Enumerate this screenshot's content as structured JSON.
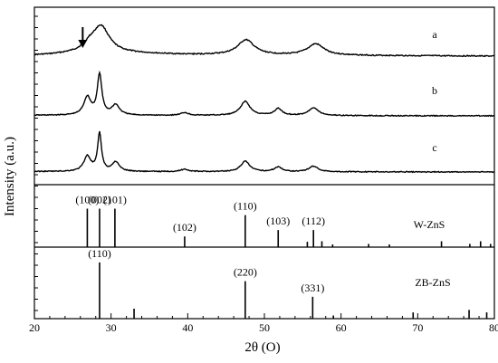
{
  "chart_data": {
    "type": "line",
    "xlabel": "2θ (O)",
    "ylabel": "Intensity (a.u.)",
    "xlim": [
      20,
      80
    ],
    "xticks": [
      20,
      30,
      40,
      50,
      60,
      70,
      80
    ],
    "grid": false,
    "legend": "none",
    "panels": [
      {
        "name": "patterns",
        "series": [
          {
            "label": "a",
            "color": "#000000",
            "peaks": [
              {
                "x": 27.2,
                "h": 0.12,
                "w": 1.0
              },
              {
                "x": 28.7,
                "h": 0.55,
                "w": 1.3
              },
              {
                "x": 47.6,
                "h": 0.32,
                "w": 1.3
              },
              {
                "x": 56.7,
                "h": 0.24,
                "w": 1.3
              }
            ],
            "baseline": [
              [
                20,
                0.02
              ],
              [
                22,
                0.03
              ],
              [
                25,
                0.06
              ],
              [
                27,
                0.08
              ],
              [
                33,
                0.06
              ],
              [
                40,
                0.03
              ],
              [
                50,
                0.02
              ],
              [
                80,
                0.0
              ]
            ],
            "arrow_x": 26.3
          },
          {
            "label": "b",
            "color": "#000000",
            "peaks": [
              {
                "x": 26.9,
                "h": 0.32,
                "w": 0.55
              },
              {
                "x": 28.5,
                "h": 0.72,
                "w": 0.35
              },
              {
                "x": 30.6,
                "h": 0.18,
                "w": 0.6
              },
              {
                "x": 39.6,
                "h": 0.05,
                "w": 0.6
              },
              {
                "x": 47.5,
                "h": 0.25,
                "w": 0.75
              },
              {
                "x": 51.8,
                "h": 0.12,
                "w": 0.6
              },
              {
                "x": 56.4,
                "h": 0.14,
                "w": 0.75
              }
            ],
            "baseline": [
              [
                20,
                0.01
              ],
              [
                80,
                0.0
              ]
            ]
          },
          {
            "label": "c",
            "color": "#000000",
            "peaks": [
              {
                "x": 26.9,
                "h": 0.32,
                "w": 0.55
              },
              {
                "x": 28.5,
                "h": 0.8,
                "w": 0.3
              },
              {
                "x": 30.6,
                "h": 0.2,
                "w": 0.55
              },
              {
                "x": 39.6,
                "h": 0.05,
                "w": 0.6
              },
              {
                "x": 47.5,
                "h": 0.22,
                "w": 0.7
              },
              {
                "x": 51.8,
                "h": 0.1,
                "w": 0.6
              },
              {
                "x": 56.4,
                "h": 0.12,
                "w": 0.7
              }
            ],
            "baseline": [
              [
                20,
                0.01
              ],
              [
                80,
                0.0
              ]
            ]
          }
        ]
      },
      {
        "name": "W-ZnS",
        "phase_label": "W-ZnS",
        "sticks": [
          {
            "x": 26.9,
            "h": 0.72
          },
          {
            "x": 28.5,
            "h": 0.72
          },
          {
            "x": 30.5,
            "h": 0.72
          },
          {
            "x": 39.6,
            "h": 0.2
          },
          {
            "x": 47.5,
            "h": 0.6
          },
          {
            "x": 51.8,
            "h": 0.32
          },
          {
            "x": 55.6,
            "h": 0.1
          },
          {
            "x": 56.4,
            "h": 0.32
          },
          {
            "x": 57.5,
            "h": 0.11
          },
          {
            "x": 58.9,
            "h": 0.05
          },
          {
            "x": 63.6,
            "h": 0.06
          },
          {
            "x": 66.3,
            "h": 0.05
          },
          {
            "x": 73.1,
            "h": 0.11
          },
          {
            "x": 76.8,
            "h": 0.06
          },
          {
            "x": 78.2,
            "h": 0.11
          },
          {
            "x": 79.5,
            "h": 0.06
          }
        ],
        "labels": [
          {
            "text": "(100)",
            "x": 26.9,
            "level": 2
          },
          {
            "text": "(002)",
            "x": 28.5,
            "level": 3
          },
          {
            "text": "(101)",
            "x": 30.5,
            "level": 2
          },
          {
            "text": "(102)",
            "x": 39.6,
            "level": 1
          },
          {
            "text": "(110)",
            "x": 47.5,
            "level": 2
          },
          {
            "text": "(103)",
            "x": 51.8,
            "level": 2
          },
          {
            "text": "(112)",
            "x": 56.4,
            "level": 1
          }
        ]
      },
      {
        "name": "ZB-ZnS",
        "phase_label": "ZB-ZnS",
        "sticks": [
          {
            "x": 28.5,
            "h": 0.9
          },
          {
            "x": 33.0,
            "h": 0.16
          },
          {
            "x": 47.5,
            "h": 0.6
          },
          {
            "x": 56.3,
            "h": 0.35
          },
          {
            "x": 59.0,
            "h": 0.05
          },
          {
            "x": 69.4,
            "h": 0.1
          },
          {
            "x": 76.7,
            "h": 0.14
          },
          {
            "x": 79.0,
            "h": 0.1
          }
        ],
        "labels": [
          {
            "text": "(110)",
            "x": 28.5,
            "level": 3
          },
          {
            "text": "(220)",
            "x": 47.5,
            "level": 2
          },
          {
            "text": "(331)",
            "x": 56.3,
            "level": 2
          }
        ]
      }
    ]
  }
}
